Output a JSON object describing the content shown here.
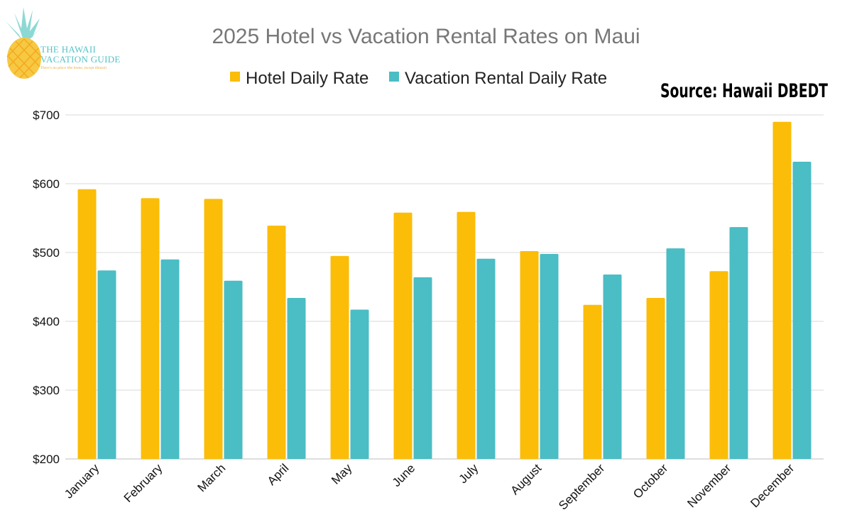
{
  "logo": {
    "line1": "THE HAWAII",
    "line2": "VACATION GUIDE",
    "tagline": "There's no place like home, except Hawaii"
  },
  "source_note": "Source: Hawaii DBEDT",
  "colors": {
    "hotel": "#fbbd08",
    "rental": "#4bbdc4",
    "grid": "#d9d9d9",
    "title": "#777777"
  },
  "chart_data": {
    "type": "bar",
    "title": "2025 Hotel vs Vacation Rental Rates on Maui",
    "xlabel": "",
    "ylabel": "",
    "categories": [
      "January",
      "February",
      "March",
      "April",
      "May",
      "June",
      "July",
      "August",
      "September",
      "October",
      "November",
      "December"
    ],
    "series": [
      {
        "name": "Hotel Daily Rate",
        "values": [
          592,
          579,
          578,
          539,
          495,
          558,
          559,
          502,
          424,
          434,
          473,
          690
        ]
      },
      {
        "name": "Vacation Rental Daily Rate",
        "values": [
          474,
          490,
          459,
          434,
          417,
          464,
          491,
          498,
          468,
          506,
          537,
          632
        ]
      }
    ],
    "ylim": [
      200,
      700
    ],
    "yticks": [
      200,
      300,
      400,
      500,
      600,
      700
    ],
    "ytick_labels": [
      "$200",
      "$300",
      "$400",
      "$500",
      "$600",
      "$700"
    ],
    "grid": true,
    "legend_position": "top"
  }
}
